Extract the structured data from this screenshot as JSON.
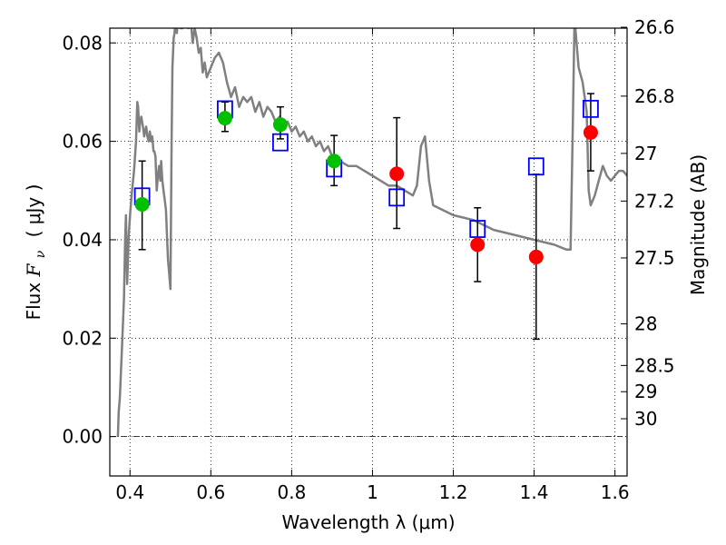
{
  "chart_data": {
    "type": "scatter",
    "xlabel": "Wavelength  λ (μm)",
    "ylabel": "Flux  F_ν  ( μJy )",
    "ylabel_parts": {
      "prefix": "Flux ",
      "symbol": "F",
      "subscript": "ν",
      "unit": "( μJy )"
    },
    "y2label": "Magnitude (AB)",
    "xlim": [
      0.35,
      1.63
    ],
    "ylim": [
      -0.008,
      0.083
    ],
    "grid": true,
    "x_ticks": [
      {
        "value": 0.4,
        "label": "0.4"
      },
      {
        "value": 0.6,
        "label": "0.6"
      },
      {
        "value": 0.8,
        "label": "0.8"
      },
      {
        "value": 1.0,
        "label": "1"
      },
      {
        "value": 1.2,
        "label": "1.2"
      },
      {
        "value": 1.4,
        "label": "1.4"
      },
      {
        "value": 1.6,
        "label": "1.6"
      }
    ],
    "y_ticks": [
      {
        "value": 0.0,
        "label": "0.00"
      },
      {
        "value": 0.02,
        "label": "0.02"
      },
      {
        "value": 0.04,
        "label": "0.04"
      },
      {
        "value": 0.06,
        "label": "0.06"
      },
      {
        "value": 0.08,
        "label": "0.08"
      }
    ],
    "y2_ticks": [
      {
        "value": 26.6,
        "label": "26.6"
      },
      {
        "value": 26.8,
        "label": "26.8"
      },
      {
        "value": 27.0,
        "label": "27"
      },
      {
        "value": 27.2,
        "label": "27.2"
      },
      {
        "value": 27.5,
        "label": "27.5"
      },
      {
        "value": 28.0,
        "label": "28"
      },
      {
        "value": 28.5,
        "label": "28.5"
      },
      {
        "value": 29.0,
        "label": "29"
      },
      {
        "value": 30.0,
        "label": "30"
      }
    ],
    "series": [
      {
        "marker": "line",
        "color": "#808080",
        "x": [
          0.37,
          0.372,
          0.375,
          0.38,
          0.385,
          0.388,
          0.39,
          0.393,
          0.395,
          0.397,
          0.4,
          0.405,
          0.41,
          0.415,
          0.418,
          0.42,
          0.423,
          0.425,
          0.428,
          0.43,
          0.432,
          0.435,
          0.437,
          0.44,
          0.443,
          0.446,
          0.449,
          0.452,
          0.455,
          0.458,
          0.46,
          0.463,
          0.466,
          0.469,
          0.472,
          0.475,
          0.477,
          0.48,
          0.483,
          0.486,
          0.489,
          0.492,
          0.494,
          0.497,
          0.5,
          0.503,
          0.505,
          0.508,
          0.51,
          0.513,
          0.516,
          0.52,
          0.525,
          0.53,
          0.535,
          0.54,
          0.545,
          0.55,
          0.555,
          0.56,
          0.565,
          0.57,
          0.575,
          0.58,
          0.585,
          0.59,
          0.6,
          0.61,
          0.62,
          0.63,
          0.64,
          0.65,
          0.66,
          0.67,
          0.68,
          0.69,
          0.7,
          0.71,
          0.72,
          0.73,
          0.74,
          0.75,
          0.76,
          0.77,
          0.78,
          0.79,
          0.8,
          0.81,
          0.82,
          0.83,
          0.84,
          0.85,
          0.86,
          0.87,
          0.88,
          0.89,
          0.9,
          0.92,
          0.94,
          0.96,
          0.98,
          1.0,
          1.02,
          1.04,
          1.06,
          1.08,
          1.1,
          1.11,
          1.12,
          1.13,
          1.14,
          1.15,
          1.2,
          1.25,
          1.3,
          1.35,
          1.4,
          1.45,
          1.48,
          1.49,
          1.495,
          1.5,
          1.502,
          1.51,
          1.52,
          1.53,
          1.535,
          1.54,
          1.55,
          1.56,
          1.57,
          1.58,
          1.59,
          1.6,
          1.61,
          1.62,
          1.63
        ],
        "y": [
          0.0,
          0.005,
          0.008,
          0.018,
          0.028,
          0.04,
          0.045,
          0.031,
          0.036,
          0.041,
          0.045,
          0.05,
          0.054,
          0.06,
          0.068,
          0.067,
          0.062,
          0.064,
          0.065,
          0.064,
          0.063,
          0.061,
          0.062,
          0.063,
          0.061,
          0.06,
          0.062,
          0.06,
          0.061,
          0.058,
          0.058,
          0.057,
          0.05,
          0.053,
          0.055,
          0.052,
          0.056,
          0.052,
          0.05,
          0.048,
          0.046,
          0.04,
          0.036,
          0.033,
          0.03,
          0.06,
          0.075,
          0.081,
          0.082,
          0.085,
          0.082,
          0.088,
          0.083,
          0.083,
          0.087,
          0.085,
          0.083,
          0.085,
          0.08,
          0.083,
          0.081,
          0.078,
          0.079,
          0.074,
          0.076,
          0.073,
          0.075,
          0.077,
          0.078,
          0.076,
          0.072,
          0.069,
          0.071,
          0.067,
          0.069,
          0.068,
          0.069,
          0.066,
          0.068,
          0.065,
          0.067,
          0.066,
          0.064,
          0.065,
          0.063,
          0.064,
          0.062,
          0.063,
          0.061,
          0.062,
          0.06,
          0.061,
          0.059,
          0.06,
          0.058,
          0.059,
          0.057,
          0.056,
          0.055,
          0.055,
          0.054,
          0.053,
          0.052,
          0.051,
          0.051,
          0.05,
          0.049,
          0.051,
          0.059,
          0.061,
          0.052,
          0.047,
          0.045,
          0.044,
          0.042,
          0.041,
          0.04,
          0.039,
          0.038,
          0.038,
          0.06,
          0.085,
          0.083,
          0.075,
          0.072,
          0.066,
          0.05,
          0.047,
          0.049,
          0.052,
          0.055,
          0.053,
          0.052,
          0.053,
          0.054,
          0.054,
          0.053
        ]
      },
      {
        "marker": "errorbar",
        "color": "#000000",
        "points": [
          {
            "x": 0.43,
            "low": 0.038,
            "high": 0.056
          },
          {
            "x": 0.635,
            "low": 0.062,
            "high": 0.068
          },
          {
            "x": 0.772,
            "low": 0.0605,
            "high": 0.067
          },
          {
            "x": 0.905,
            "low": 0.051,
            "high": 0.0612
          },
          {
            "x": 1.06,
            "low": 0.0423,
            "high": 0.0648
          },
          {
            "x": 1.26,
            "low": 0.0315,
            "high": 0.0465
          },
          {
            "x": 1.405,
            "low": 0.0198,
            "high": 0.0533
          },
          {
            "x": 1.54,
            "low": 0.054,
            "high": 0.0697
          }
        ]
      },
      {
        "marker": "open-square",
        "color": "#0000ff",
        "x": [
          0.43,
          0.635,
          0.772,
          0.905,
          1.06,
          1.26,
          1.405,
          1.54
        ],
        "y": [
          0.0488,
          0.0665,
          0.0598,
          0.0545,
          0.0486,
          0.0422,
          0.0549,
          0.0666
        ]
      },
      {
        "marker": "filled-circle",
        "color": "#00c000",
        "x": [
          0.43,
          0.635,
          0.772,
          0.905
        ],
        "y": [
          0.0472,
          0.0647,
          0.0634,
          0.056
        ]
      },
      {
        "marker": "filled-circle",
        "color": "#ff0000",
        "x": [
          1.06,
          1.26,
          1.405,
          1.54
        ],
        "y": [
          0.0534,
          0.039,
          0.0365,
          0.0618
        ]
      }
    ]
  }
}
